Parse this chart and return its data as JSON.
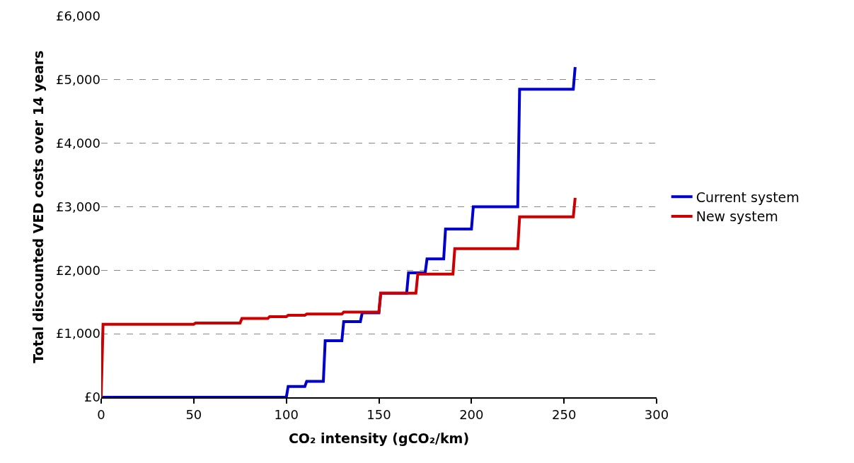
{
  "chart_data": {
    "type": "line",
    "xlabel": "CO₂ intensity (gCO₂/km)",
    "ylabel": "Total discounted VED costs over 14 years",
    "xlim": [
      0,
      300
    ],
    "xticks": [
      0,
      50,
      100,
      150,
      200,
      250,
      300
    ],
    "ylim": [
      0,
      6000
    ],
    "yticks": [
      {
        "value": 0,
        "label": "£0"
      },
      {
        "value": 1000,
        "label": "£1,000"
      },
      {
        "value": 2000,
        "label": "£2,000"
      },
      {
        "value": 3000,
        "label": "£3,000"
      },
      {
        "value": 4000,
        "label": "£4,000"
      },
      {
        "value": 5000,
        "label": "£5,000"
      },
      {
        "value": 6000,
        "label": "£6,000"
      }
    ],
    "grid": "y",
    "legend": "right",
    "marker": "none",
    "line_style": "solid",
    "series": [
      {
        "name": "Current system",
        "color": "#0000cc",
        "x": [
          0,
          100,
          101,
          110,
          111,
          120,
          121,
          130,
          131,
          140,
          141,
          150,
          151,
          165,
          166,
          175,
          176,
          185,
          186,
          200,
          201,
          225,
          226,
          255,
          256
        ],
        "values": [
          0,
          0,
          170,
          170,
          250,
          250,
          890,
          890,
          1190,
          1190,
          1330,
          1330,
          1640,
          1640,
          1960,
          1960,
          2180,
          2180,
          2650,
          2650,
          3000,
          3000,
          4850,
          4850,
          5200
        ]
      },
      {
        "name": "New system",
        "color": "#cc0000",
        "x": [
          0,
          1,
          50,
          51,
          75,
          76,
          90,
          91,
          100,
          101,
          110,
          111,
          130,
          131,
          150,
          151,
          170,
          171,
          190,
          191,
          225,
          226,
          255,
          256
        ],
        "values": [
          0,
          1150,
          1150,
          1170,
          1170,
          1240,
          1240,
          1270,
          1270,
          1290,
          1290,
          1310,
          1310,
          1340,
          1340,
          1640,
          1640,
          1940,
          1940,
          2340,
          2340,
          2840,
          2840,
          3140
        ]
      }
    ]
  }
}
